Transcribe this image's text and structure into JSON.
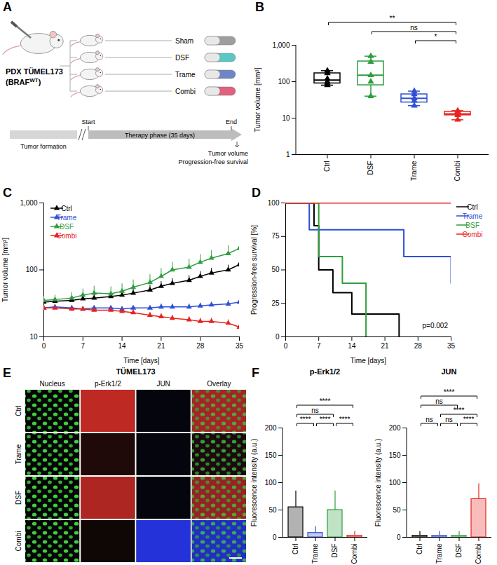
{
  "figure": {
    "A": {
      "panel_label": "A",
      "model": "PDX TÜMEL173",
      "genotype_prefix": "(BRAF",
      "genotype_superscript": "WT",
      "genotype_suffix": ")",
      "arms": [
        {
          "name": "Sham",
          "color": "#9e9e9e"
        },
        {
          "name": "DSF",
          "color": "#5cc7c4"
        },
        {
          "name": "Trame",
          "color": "#6f86c6"
        },
        {
          "name": "Combi",
          "color": "#e0607e"
        }
      ],
      "phases": [
        "Tumor formation",
        "Therapy phase (35 days)"
      ],
      "milestones": [
        "Start",
        "End"
      ],
      "endpoints": [
        "Tumor volume",
        "Progression-free survival"
      ]
    },
    "E": {
      "panel_label": "E",
      "title": "TÜMEL173",
      "columns": [
        "Nucleus",
        "p-Erk1/2",
        "JUN",
        "Overlay"
      ],
      "rows": [
        "Ctrl",
        "Trame",
        "DSF",
        "Combi"
      ]
    }
  },
  "chart_data": [
    {
      "panel_label": "B",
      "type": "box",
      "categories": [
        "Ctrl",
        "DSF",
        "Trame",
        "Combi"
      ],
      "colors": [
        "#000000",
        "#2e9e3e",
        "#2f4fd6",
        "#e8231f"
      ],
      "marker": "triangle",
      "y_label": "Tumor volume [mm³]",
      "log": "y",
      "ylim": [
        1,
        1000
      ],
      "yticks": [
        1,
        10,
        100,
        {
          "value": 1000,
          "label": "1,000"
        }
      ],
      "boxes": {
        "min": [
          80,
          40,
          22,
          9
        ],
        "q1": [
          90,
          80,
          27,
          12
        ],
        "median": [
          110,
          150,
          35,
          13
        ],
        "q3": [
          170,
          360,
          45,
          15
        ],
        "max": [
          200,
          500,
          55,
          16
        ]
      },
      "points": [
        [
          200,
          170,
          120,
          100,
          90,
          80
        ],
        [
          500,
          350,
          150,
          100,
          40
        ],
        [
          55,
          45,
          35,
          30,
          22
        ],
        [
          16,
          15,
          13,
          12,
          9
        ]
      ],
      "comparisons": [
        {
          "from": "Ctrl",
          "to": "Combi",
          "label": "**"
        },
        {
          "from": "DSF",
          "to": "Combi",
          "label": "ns"
        },
        {
          "from": "Trame",
          "to": "Combi",
          "label": "*"
        }
      ]
    },
    {
      "panel_label": "C",
      "type": "line",
      "x_label": "Time [days]",
      "y_label": "Tumor volume [mm³]",
      "log": "y",
      "xlim": [
        0,
        35
      ],
      "xticks": [
        0,
        7,
        14,
        21,
        28,
        35
      ],
      "ylim": [
        10,
        1000
      ],
      "yticks": [
        10,
        100,
        {
          "value": 1000,
          "label": "1,000"
        }
      ],
      "marker": "triangle",
      "legend": "top-left",
      "x": [
        0,
        2,
        5,
        7,
        9,
        12,
        14,
        16,
        19,
        21,
        23,
        26,
        28,
        30,
        33,
        35
      ],
      "series": [
        {
          "name": "Ctrl",
          "color": "#000000",
          "values": [
            33,
            34,
            35,
            37,
            38,
            40,
            42,
            45,
            50,
            57,
            63,
            70,
            80,
            90,
            100,
            120
          ],
          "errors": [
            3,
            4,
            4,
            5,
            5,
            6,
            7,
            8,
            9,
            10,
            11,
            12,
            14,
            16,
            18,
            20
          ]
        },
        {
          "name": "Trame",
          "color": "#2f4fd6",
          "values": [
            27,
            28,
            27,
            26,
            27,
            27,
            26,
            27,
            27,
            28,
            28,
            28,
            29,
            30,
            31,
            33
          ],
          "errors": [
            2,
            2,
            2,
            2,
            2,
            2,
            2,
            2,
            2,
            3,
            3,
            3,
            3,
            3,
            4,
            5
          ]
        },
        {
          "name": "DSF",
          "color": "#2e9e3e",
          "values": [
            35,
            36,
            38,
            42,
            45,
            44,
            48,
            55,
            65,
            80,
            100,
            110,
            130,
            150,
            175,
            210
          ],
          "errors": [
            5,
            6,
            8,
            10,
            12,
            12,
            14,
            16,
            20,
            25,
            30,
            35,
            40,
            45,
            55,
            70
          ]
        },
        {
          "name": "Combi",
          "color": "#e8231f",
          "values": [
            27,
            27,
            26,
            26,
            25,
            25,
            24,
            23,
            21,
            20,
            19,
            18,
            17,
            17,
            16,
            14
          ],
          "errors": [
            2,
            2,
            2,
            2,
            2,
            2,
            2,
            2,
            2,
            2,
            2,
            2,
            2,
            2,
            2,
            2
          ]
        }
      ]
    },
    {
      "panel_label": "D",
      "type": "line",
      "line_style": "step",
      "x_label": "Time [days]",
      "y_label": "Progression-free survival [%]",
      "xlim": [
        0,
        35
      ],
      "xticks": [
        0,
        7,
        14,
        21,
        28,
        35
      ],
      "ylim": [
        0,
        100
      ],
      "yticks": [
        0,
        25,
        50,
        75,
        100
      ],
      "legend": "right",
      "annotation": "p=0.002",
      "series": [
        {
          "name": "Ctrl",
          "color": "#000000",
          "x": [
            0,
            6,
            7,
            10,
            14,
            24
          ],
          "values": [
            100,
            83,
            50,
            33,
            17,
            0
          ]
        },
        {
          "name": "Trame",
          "color": "#2f4fd6",
          "x": [
            0,
            5,
            25,
            35
          ],
          "values": [
            100,
            80,
            60,
            40
          ]
        },
        {
          "name": "DSF",
          "color": "#2e9e3e",
          "x": [
            0,
            7,
            12,
            17
          ],
          "values": [
            100,
            60,
            40,
            0
          ]
        },
        {
          "name": "Combi",
          "color": "#e8231f",
          "x": [
            0,
            35
          ],
          "values": [
            100,
            100
          ]
        }
      ]
    },
    {
      "panel_label": "F",
      "type": "bar",
      "title": "p-Erk1/2",
      "categories": [
        "Ctrl",
        "Trame",
        "DSF",
        "Combi"
      ],
      "values": [
        55,
        8,
        50,
        3
      ],
      "errors": [
        30,
        12,
        35,
        8
      ],
      "colors": [
        "#000000",
        "#2f4fd6",
        "#2e9e3e",
        "#e8231f"
      ],
      "y_label": "Fluorescence intensity (a.u.)",
      "ylim": [
        0,
        200
      ],
      "yticks": [
        0,
        50,
        100,
        150,
        200
      ],
      "comparisons": [
        {
          "from": "Ctrl",
          "to": "Combi",
          "label": "****"
        },
        {
          "from": "Ctrl",
          "to": "DSF",
          "label": "ns"
        },
        {
          "from": "Ctrl",
          "to": "Trame",
          "label": "****"
        },
        {
          "from": "Trame",
          "to": "DSF",
          "label": "****"
        },
        {
          "from": "DSF",
          "to": "Combi",
          "label": "****"
        }
      ]
    },
    {
      "type": "bar",
      "title": "JUN",
      "categories": [
        "Ctrl",
        "Trame",
        "DSF",
        "Combi"
      ],
      "values": [
        3,
        3,
        3,
        70
      ],
      "errors": [
        8,
        8,
        8,
        28
      ],
      "colors": [
        "#000000",
        "#2f4fd6",
        "#2e9e3e",
        "#e8231f"
      ],
      "y_label": "Fluorescence intensity (a.u.)",
      "ylim": [
        0,
        200
      ],
      "yticks": [
        0,
        50,
        100,
        150,
        200
      ],
      "comparisons": [
        {
          "from": "Ctrl",
          "to": "Combi",
          "label": "****"
        },
        {
          "from": "Ctrl",
          "to": "DSF",
          "label": "ns"
        },
        {
          "from": "Trame",
          "to": "Combi",
          "label": "****"
        },
        {
          "from": "Ctrl",
          "to": "Trame",
          "label": "ns"
        },
        {
          "from": "Trame",
          "to": "DSF",
          "label": "ns"
        },
        {
          "from": "DSF",
          "to": "Combi",
          "label": "****"
        }
      ]
    }
  ]
}
